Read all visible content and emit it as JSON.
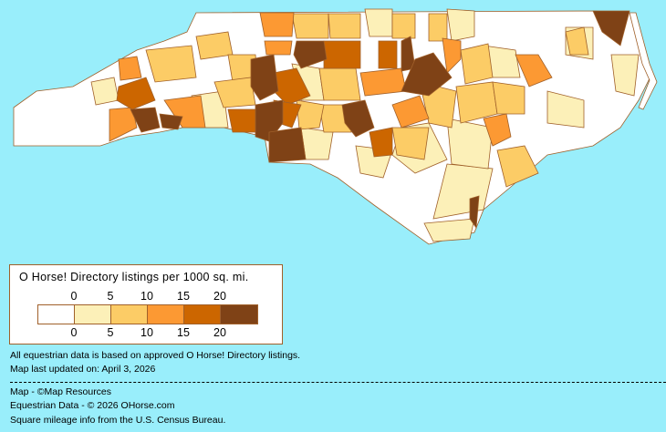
{
  "legend": {
    "title": "O Horse! Directory listings per 1000 sq. mi.",
    "ticks": [
      "0",
      "5",
      "10",
      "15",
      "20"
    ],
    "colors": [
      "#ffffff",
      "#fcf0b8",
      "#fccc66",
      "#fc9933",
      "#cc6600",
      "#7f4216"
    ]
  },
  "colors": {
    "background": "#99eefb",
    "border": "#a0602a"
  },
  "notes": {
    "data_basis": "All equestrian data is based on approved O Horse! Directory listings.",
    "updated": "Map last updated on: April 3, 2026",
    "map_credit": "Map - ©Map Resources",
    "data_credit": "Equestrian Data - © 2026 OHorse.com",
    "census_credit": "Square mileage info from the U.S. Census Bureau."
  }
}
